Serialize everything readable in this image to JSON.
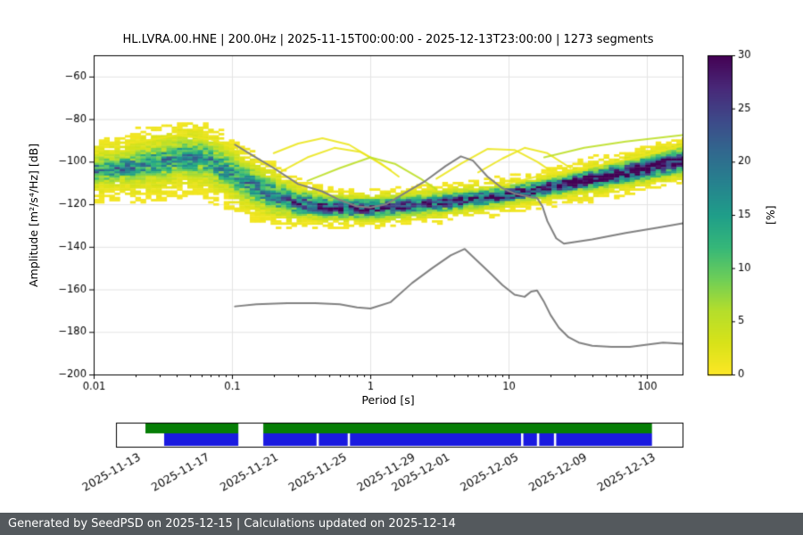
{
  "footer": {
    "text": "Generated by SeedPSD on 2025-12-15 | Calculations updated on 2025-12-14"
  },
  "colors": {
    "footer_bg": "#54595d",
    "footer_text": "#ffffff",
    "noise_model_line": "#808080",
    "availability_green": "#067e06",
    "availability_blue": "#1a1ae0",
    "grid": "#e3e3e3",
    "axis": "#000000"
  },
  "chart_data": {
    "type": "heatmap",
    "title": "HL.LVRA.00.HNE | 200.0Hz | 2025-11-15T00:00:00 - 2025-12-13T23:00:00 | 1273 segments",
    "xlabel": "Period [s]",
    "ylabel": "Amplitude [m²/s⁴/Hz] [dB]",
    "colorbar_label": "[%]",
    "xlim": [
      0.01,
      180
    ],
    "ylim": [
      -200,
      -50
    ],
    "x_scale": "log",
    "grid": true,
    "x_ticks": [
      0.01,
      0.1,
      1,
      10,
      100
    ],
    "x_tick_labels": [
      "0.01",
      "0.1",
      "1",
      "10",
      "100"
    ],
    "y_ticks": [
      -60,
      -80,
      -100,
      -120,
      -140,
      -160,
      -180,
      -200
    ],
    "y_tick_labels": [
      "−60",
      "−80",
      "−100",
      "−120",
      "−140",
      "−160",
      "−180",
      "−200"
    ],
    "colorbar_range": [
      0,
      30
    ],
    "colorbar_ticks": [
      0,
      5,
      10,
      15,
      20,
      25,
      30
    ],
    "colorbar_tick_labels": [
      "0",
      "5",
      "10",
      "15",
      "20",
      "25",
      "30"
    ],
    "colormap_stops": [
      "#440154",
      "#482878",
      "#3e4989",
      "#31688e",
      "#26828e",
      "#1f9e89",
      "#35b779",
      "#6ece58",
      "#b5de2b",
      "#d8e219",
      "#fde725"
    ],
    "psd_band_columns": [
      "period_s",
      "center_db",
      "sigma_db",
      "peak_percent",
      "halo_sigma_db",
      "halo_peak_percent"
    ],
    "psd_band": [
      [
        0.01,
        -104,
        3,
        13,
        8,
        4
      ],
      [
        0.016,
        -103,
        3,
        13,
        8,
        4
      ],
      [
        0.025,
        -101,
        3.5,
        12,
        9,
        4.5
      ],
      [
        0.04,
        -98.5,
        4,
        11,
        9,
        5
      ],
      [
        0.06,
        -98,
        4,
        11,
        9,
        5
      ],
      [
        0.08,
        -102,
        4,
        12,
        9,
        4.5
      ],
      [
        0.12,
        -109,
        4,
        12,
        9,
        4
      ],
      [
        0.2,
        -116,
        4,
        14,
        8,
        4
      ],
      [
        0.3,
        -119.5,
        3,
        18,
        6,
        4
      ],
      [
        0.5,
        -121.5,
        2.5,
        22,
        5,
        3.5
      ],
      [
        0.8,
        -122,
        2.5,
        23,
        5,
        3
      ],
      [
        1.3,
        -121.5,
        2.5,
        21,
        5,
        3
      ],
      [
        2,
        -120.5,
        2.5,
        20,
        5,
        3
      ],
      [
        3,
        -119.5,
        2.5,
        20,
        5,
        3
      ],
      [
        5,
        -118,
        2.2,
        22,
        5,
        3
      ],
      [
        8,
        -116.5,
        2,
        26,
        5,
        3
      ],
      [
        12,
        -114.5,
        2,
        28,
        5,
        3
      ],
      [
        20,
        -112,
        2,
        29,
        5,
        3
      ],
      [
        35,
        -109,
        2.2,
        30,
        6,
        3
      ],
      [
        60,
        -106,
        2.5,
        30,
        6,
        3
      ],
      [
        100,
        -103,
        2.8,
        28,
        6,
        3
      ],
      [
        150,
        -100.5,
        3,
        26,
        6,
        3
      ],
      [
        180,
        -99.5,
        3,
        25,
        6,
        3
      ]
    ],
    "outlier_curves": [
      [
        [
          0.2,
          -96
        ],
        [
          0.3,
          -91.5
        ],
        [
          0.45,
          -89
        ],
        [
          0.7,
          -92
        ],
        [
          1,
          -98
        ],
        [
          1.4,
          -104
        ]
      ],
      [
        [
          0.22,
          -105
        ],
        [
          0.35,
          -98
        ],
        [
          0.55,
          -93.5
        ],
        [
          0.85,
          -95.5
        ],
        [
          1.2,
          -101
        ],
        [
          1.6,
          -107
        ]
      ],
      [
        [
          0.35,
          -109
        ],
        [
          0.6,
          -103
        ],
        [
          1,
          -98
        ],
        [
          1.5,
          -101
        ],
        [
          2.3,
          -108
        ],
        [
          3,
          -113
        ]
      ],
      [
        [
          3,
          -108
        ],
        [
          4.5,
          -101
        ],
        [
          7,
          -94
        ],
        [
          11,
          -94.5
        ],
        [
          16,
          -100
        ],
        [
          22,
          -106
        ]
      ],
      [
        [
          6,
          -105
        ],
        [
          9,
          -98.5
        ],
        [
          13,
          -93.5
        ],
        [
          19,
          -96
        ],
        [
          28,
          -103
        ]
      ],
      [
        [
          18,
          -98
        ],
        [
          35,
          -93.5
        ],
        [
          70,
          -90.5
        ],
        [
          130,
          -88.5
        ],
        [
          180,
          -87.5
        ]
      ],
      [
        [
          0.02,
          -91
        ],
        [
          0.04,
          -87.5
        ],
        [
          0.07,
          -89.5
        ],
        [
          0.11,
          -94
        ]
      ],
      [
        [
          9,
          -111
        ],
        [
          16,
          -107
        ],
        [
          30,
          -104
        ],
        [
          60,
          -100
        ],
        [
          110,
          -96
        ],
        [
          175,
          -92.5
        ]
      ]
    ],
    "noise_models": {
      "high": [
        [
          0.105,
          -92
        ],
        [
          0.14,
          -97
        ],
        [
          0.2,
          -103
        ],
        [
          0.3,
          -110.5
        ],
        [
          0.45,
          -114
        ],
        [
          0.6,
          -118
        ],
        [
          0.8,
          -121
        ],
        [
          1,
          -121.5
        ],
        [
          1.3,
          -120
        ],
        [
          1.8,
          -114.5
        ],
        [
          2.5,
          -109
        ],
        [
          3.5,
          -102
        ],
        [
          4.5,
          -97.5
        ],
        [
          5.5,
          -99.5
        ],
        [
          7,
          -107
        ],
        [
          9,
          -112.5
        ],
        [
          11,
          -115
        ],
        [
          14,
          -116.5
        ],
        [
          16,
          -117
        ],
        [
          17.5,
          -121
        ],
        [
          19,
          -128
        ],
        [
          22,
          -136
        ],
        [
          25,
          -138.5
        ],
        [
          40,
          -136.5
        ],
        [
          70,
          -133.5
        ],
        [
          120,
          -131
        ],
        [
          180,
          -129
        ]
      ],
      "low": [
        [
          0.105,
          -168
        ],
        [
          0.15,
          -167
        ],
        [
          0.25,
          -166.5
        ],
        [
          0.4,
          -166.5
        ],
        [
          0.6,
          -167
        ],
        [
          0.8,
          -168.5
        ],
        [
          1,
          -169
        ],
        [
          1.4,
          -166
        ],
        [
          2,
          -157
        ],
        [
          2.8,
          -150
        ],
        [
          3.8,
          -144
        ],
        [
          4.8,
          -141
        ],
        [
          6,
          -147
        ],
        [
          7.5,
          -153
        ],
        [
          9,
          -158
        ],
        [
          11,
          -162.5
        ],
        [
          13,
          -163.5
        ],
        [
          14.5,
          -161
        ],
        [
          16,
          -160.5
        ],
        [
          18,
          -166
        ],
        [
          20,
          -172
        ],
        [
          23,
          -178
        ],
        [
          27,
          -182.5
        ],
        [
          32,
          -185
        ],
        [
          40,
          -186.5
        ],
        [
          55,
          -187
        ],
        [
          75,
          -187
        ],
        [
          100,
          -186
        ],
        [
          130,
          -185
        ],
        [
          180,
          -185.5
        ]
      ]
    },
    "availability": {
      "rows": [
        {
          "name": "green",
          "segments": [
            [
              0.052,
              0.216
            ],
            [
              0.26,
              0.946
            ]
          ]
        },
        {
          "name": "blue",
          "segments": [
            [
              0.085,
              0.216
            ],
            [
              0.26,
              0.354
            ],
            [
              0.358,
              0.409
            ],
            [
              0.413,
              0.715
            ],
            [
              0.719,
              0.743
            ],
            [
              0.747,
              0.773
            ],
            [
              0.777,
              0.946
            ]
          ]
        }
      ],
      "date_labels": [
        "2025-11-13",
        "2025-11-17",
        "2025-11-21",
        "2025-11-25",
        "2025-11-29",
        "2025-12-01",
        "2025-12-05",
        "2025-12-09",
        "2025-12-13"
      ],
      "date_fracs": [
        0.03,
        0.152,
        0.273,
        0.394,
        0.515,
        0.576,
        0.697,
        0.818,
        0.939
      ]
    }
  }
}
